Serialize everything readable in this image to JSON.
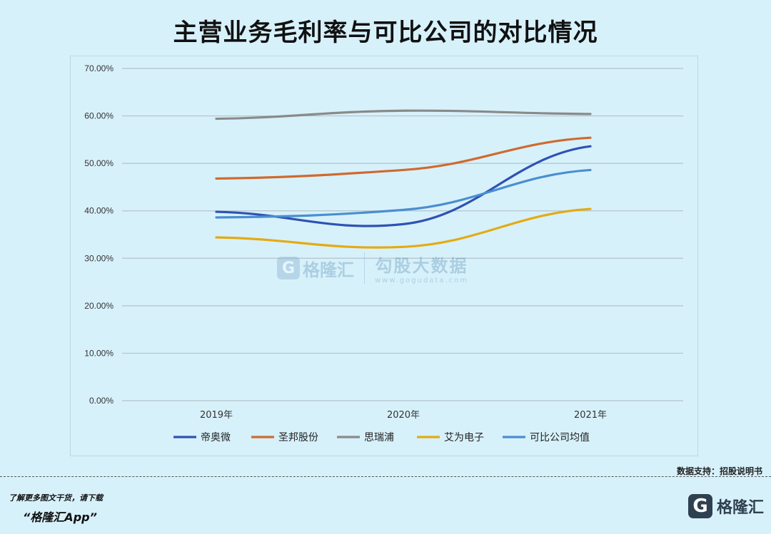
{
  "title": "主营业务毛利率与可比公司的对比情况",
  "source": "数据支持：招股说明书",
  "footer": {
    "note": "了解更多图文干货，请下载",
    "app": "“格隆汇App”"
  },
  "brand": {
    "icon": "G",
    "name": "格隆汇"
  },
  "watermark": {
    "left": "格隆汇",
    "right": "勾股大数据",
    "url": "www.gogudata.com"
  },
  "chart_data": {
    "type": "line",
    "categories": [
      "2019年",
      "2020年",
      "2021年"
    ],
    "ylim": [
      0,
      70
    ],
    "yticks": [
      "0.00%",
      "10.00%",
      "20.00%",
      "30.00%",
      "40.00%",
      "50.00%",
      "60.00%",
      "70.00%"
    ],
    "grid": true,
    "legend_position": "bottom",
    "series": [
      {
        "name": "帝奥微",
        "color": "#2f52b3",
        "values": [
          39.8,
          37.2,
          53.6
        ]
      },
      {
        "name": "圣邦股份",
        "color": "#cf6a2e",
        "values": [
          46.8,
          48.6,
          55.4
        ]
      },
      {
        "name": "思瑞浦",
        "color": "#8a8a8a",
        "values": [
          59.4,
          61.1,
          60.4
        ]
      },
      {
        "name": "艾为电子",
        "color": "#e3ab12",
        "values": [
          34.4,
          32.4,
          40.4
        ]
      },
      {
        "name": "可比公司均值",
        "color": "#4a8ed0",
        "values": [
          38.6,
          40.2,
          48.6
        ]
      }
    ]
  }
}
